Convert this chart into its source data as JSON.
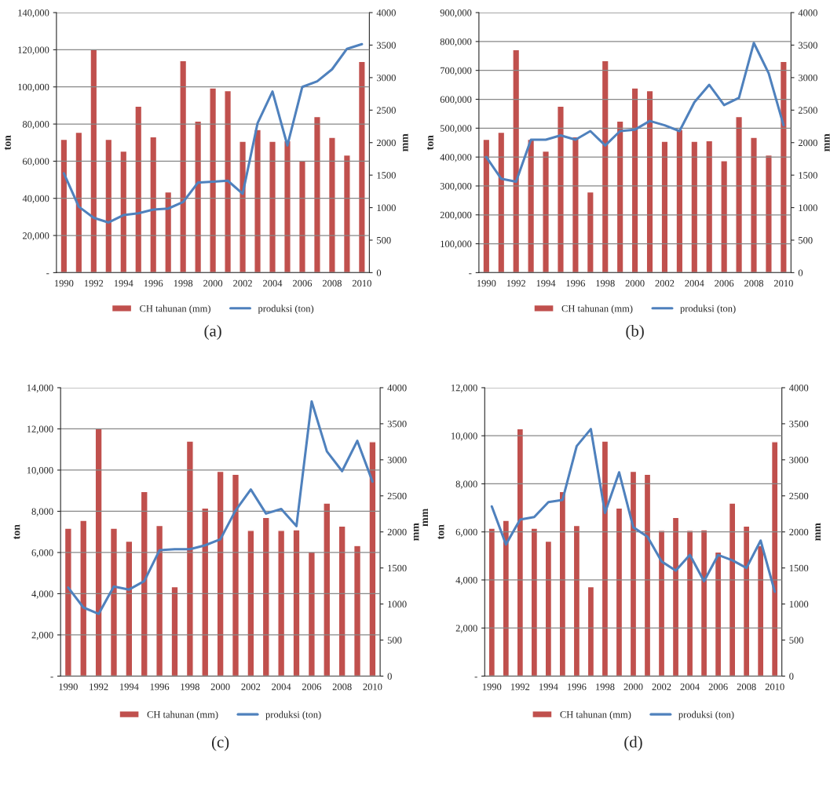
{
  "chart_data": [
    {
      "type": "bar",
      "title": "(a)",
      "categories": [
        "1990",
        null,
        "1992",
        null,
        "1994",
        null,
        "1996",
        null,
        "1998",
        null,
        "2000",
        null,
        "2002",
        null,
        "2004",
        null,
        "2006",
        null,
        "2008",
        null,
        "2010"
      ],
      "ylabel": "ton",
      "y2label": "mm",
      "ylim": [
        0,
        140000
      ],
      "yticks": [
        {
          "value": 0,
          "label": "-"
        },
        {
          "value": 20000,
          "label": "20,000"
        },
        {
          "value": 40000,
          "label": "40,000"
        },
        {
          "value": 60000,
          "label": "60,000"
        },
        {
          "value": 80000,
          "label": "80,000"
        },
        {
          "value": 100000,
          "label": "100,000"
        },
        {
          "value": 120000,
          "label": "120,000"
        },
        {
          "value": 140000,
          "label": "140,000"
        }
      ],
      "y2lim": [
        0,
        4000
      ],
      "y2ticks": [
        0,
        500,
        1000,
        1500,
        2000,
        2500,
        3000,
        3500,
        4000
      ],
      "grid": "y",
      "legend": "bottom",
      "series": [
        {
          "name": "CH tahunan (mm)",
          "axis": "y2",
          "color": "#c0504d",
          "values": [
            2050,
            2160,
            3430,
            2050,
            1870,
            2560,
            2090,
            1240,
            3260,
            2330,
            2840,
            2800,
            2020,
            2200,
            2020,
            2030,
            1720,
            2400,
            2080,
            1810,
            3250
          ]
        },
        {
          "name": "produksi (ton)",
          "type": "line",
          "axis": "y",
          "color": "#4f81bd",
          "values": [
            53500,
            35500,
            29500,
            27000,
            31000,
            32000,
            34000,
            34500,
            38000,
            48500,
            49000,
            49500,
            42500,
            80500,
            97500,
            68500,
            100000,
            103000,
            109500,
            120500,
            123000
          ]
        }
      ]
    },
    {
      "type": "bar",
      "title": "(b)",
      "categories": [
        "1990",
        null,
        "1992",
        null,
        "1994",
        null,
        "1996",
        null,
        "1998",
        null,
        "2000",
        null,
        "2002",
        null,
        "2004",
        null,
        "2006",
        null,
        "2008",
        null,
        "2010"
      ],
      "ylabel": "ton",
      "y2label": "mm",
      "ylim": [
        0,
        900000
      ],
      "yticks": [
        {
          "value": 0,
          "label": "-"
        },
        {
          "value": 100000,
          "label": "100,000"
        },
        {
          "value": 200000,
          "label": "200,000"
        },
        {
          "value": 300000,
          "label": "300,000"
        },
        {
          "value": 400000,
          "label": "400,000"
        },
        {
          "value": 500000,
          "label": "500,000"
        },
        {
          "value": 600000,
          "label": "600,000"
        },
        {
          "value": 700000,
          "label": "700,000"
        },
        {
          "value": 800000,
          "label": "800,000"
        },
        {
          "value": 900000,
          "label": "900,000"
        }
      ],
      "y2lim": [
        0,
        4000
      ],
      "y2ticks": [
        0,
        500,
        1000,
        1500,
        2000,
        2500,
        3000,
        3500,
        4000
      ],
      "grid": "y",
      "legend": "bottom",
      "series": [
        {
          "name": "CH tahunan (mm)",
          "axis": "y2",
          "color": "#c0504d",
          "values": [
            2050,
            2160,
            3430,
            2050,
            1870,
            2560,
            2090,
            1240,
            3260,
            2330,
            2840,
            2800,
            2020,
            2200,
            2020,
            2030,
            1720,
            2400,
            2080,
            1810,
            3250
          ]
        },
        {
          "name": "produksi (ton)",
          "type": "line",
          "axis": "y",
          "color": "#4f81bd",
          "values": [
            400000,
            325000,
            315000,
            460000,
            460000,
            475000,
            460000,
            490000,
            440000,
            490000,
            495000,
            525000,
            510000,
            490000,
            590000,
            650000,
            580000,
            605000,
            795000,
            690000,
            510000
          ]
        }
      ]
    },
    {
      "type": "bar",
      "title": "(c)",
      "categories": [
        "1990",
        null,
        "1992",
        null,
        "1994",
        null,
        "1996",
        null,
        "1998",
        null,
        "2000",
        null,
        "2002",
        null,
        "2004",
        null,
        "2006",
        null,
        "2008",
        null,
        "2010"
      ],
      "ylabel": "ton",
      "y2label": "mm",
      "ylim": [
        0,
        14000
      ],
      "yticks": [
        {
          "value": 0,
          "label": "-"
        },
        {
          "value": 2000,
          "label": "2,000"
        },
        {
          "value": 4000,
          "label": "4,000"
        },
        {
          "value": 6000,
          "label": "6,000"
        },
        {
          "value": 8000,
          "label": "8,000"
        },
        {
          "value": 10000,
          "label": "10,000"
        },
        {
          "value": 12000,
          "label": "12,000"
        },
        {
          "value": 14000,
          "label": "14,000"
        }
      ],
      "y2lim": [
        0,
        4000
      ],
      "y2ticks": [
        0,
        500,
        1000,
        1500,
        2000,
        2500,
        3000,
        3500,
        4000
      ],
      "grid": "y",
      "legend": "bottom",
      "series": [
        {
          "name": "CH tahunan (mm)",
          "axis": "y2",
          "color": "#c0504d",
          "values": [
            2050,
            2160,
            3430,
            2050,
            1870,
            2560,
            2090,
            1240,
            3260,
            2330,
            2840,
            2800,
            2020,
            2200,
            2020,
            2030,
            1720,
            2400,
            2080,
            1810,
            3250
          ]
        },
        {
          "name": "produksi (ton)",
          "type": "line",
          "axis": "y",
          "color": "#4f81bd",
          "values": [
            4300,
            3330,
            3020,
            4350,
            4200,
            4610,
            6110,
            6160,
            6160,
            6350,
            6640,
            8040,
            9060,
            7890,
            8110,
            7280,
            13330,
            10910,
            9950,
            11420,
            9440
          ]
        }
      ]
    },
    {
      "type": "bar",
      "title": "(d)",
      "annotations": [
        "mm"
      ],
      "categories": [
        "1990",
        null,
        "1992",
        null,
        "1994",
        null,
        "1996",
        null,
        "1998",
        null,
        "2000",
        null,
        "2002",
        null,
        "2004",
        null,
        "2006",
        null,
        "2008",
        null,
        "2010"
      ],
      "ylabel": "ton",
      "y2label": "mm",
      "ylim": [
        0,
        12000
      ],
      "yticks": [
        {
          "value": 0,
          "label": "-"
        },
        {
          "value": 2000,
          "label": "2,000"
        },
        {
          "value": 4000,
          "label": "4,000"
        },
        {
          "value": 6000,
          "label": "6,000"
        },
        {
          "value": 8000,
          "label": "8,000"
        },
        {
          "value": 10000,
          "label": "10,000"
        },
        {
          "value": 12000,
          "label": "12,000"
        }
      ],
      "y2lim": [
        0,
        4000
      ],
      "y2ticks": [
        0,
        500,
        1000,
        1500,
        2000,
        2500,
        3000,
        3500,
        4000
      ],
      "grid": "y",
      "legend": "bottom",
      "series": [
        {
          "name": "CH tahunan (mm)",
          "axis": "y2",
          "color": "#c0504d",
          "values": [
            2050,
            2160,
            3430,
            2050,
            1870,
            2560,
            2090,
            1240,
            3260,
            2330,
            2840,
            2800,
            2020,
            2200,
            2020,
            2030,
            1720,
            2400,
            2080,
            1810,
            3250
          ]
        },
        {
          "name": "produksi (ton)",
          "type": "line",
          "axis": "y",
          "color": "#4f81bd",
          "values": [
            7060,
            5480,
            6510,
            6620,
            7240,
            7330,
            9570,
            10280,
            6790,
            8480,
            6190,
            5800,
            4770,
            4390,
            5040,
            3950,
            5040,
            4820,
            4500,
            5640,
            3510
          ]
        }
      ]
    }
  ]
}
